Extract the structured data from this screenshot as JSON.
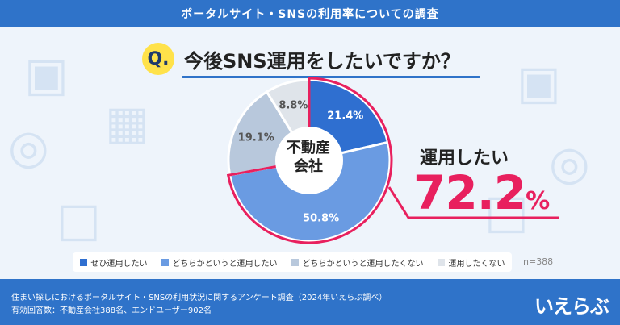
{
  "header": {
    "title": "ポータルサイト・SNSの利用率についての調査"
  },
  "question": {
    "badge": "Q.",
    "text": "今後SNS運用をしたいですか？"
  },
  "chart_data": {
    "type": "pie",
    "center_label": [
      "不動産",
      "会社"
    ],
    "categories": [
      "ぜひ運用したい",
      "どちらかというと運用したい",
      "どちらかというと運用したくない",
      "運用したくない"
    ],
    "values": [
      21.4,
      50.8,
      19.1,
      8.8
    ],
    "labels": [
      "21.4%",
      "50.8%",
      "19.1%",
      "8.8%"
    ],
    "colors": [
      "#2f6fd0",
      "#6a9be2",
      "#b8c8dc",
      "#dfe4ea"
    ],
    "label_colors": [
      "#ffffff",
      "#ffffff",
      "#555555",
      "#555555"
    ],
    "highlight": {
      "label": "運用したい",
      "value": "72.2",
      "unit": "%",
      "color": "#e8205e"
    },
    "n": "n=388"
  },
  "footer": {
    "line1": "住まい探しにおけるポータルサイト・SNSの利用状況に関するアンケート調査（2024年いえらぶ調べ）",
    "line2": "有効回答数：不動産会社388名、エンドユーザー902名",
    "brand": "いえらぶ"
  }
}
